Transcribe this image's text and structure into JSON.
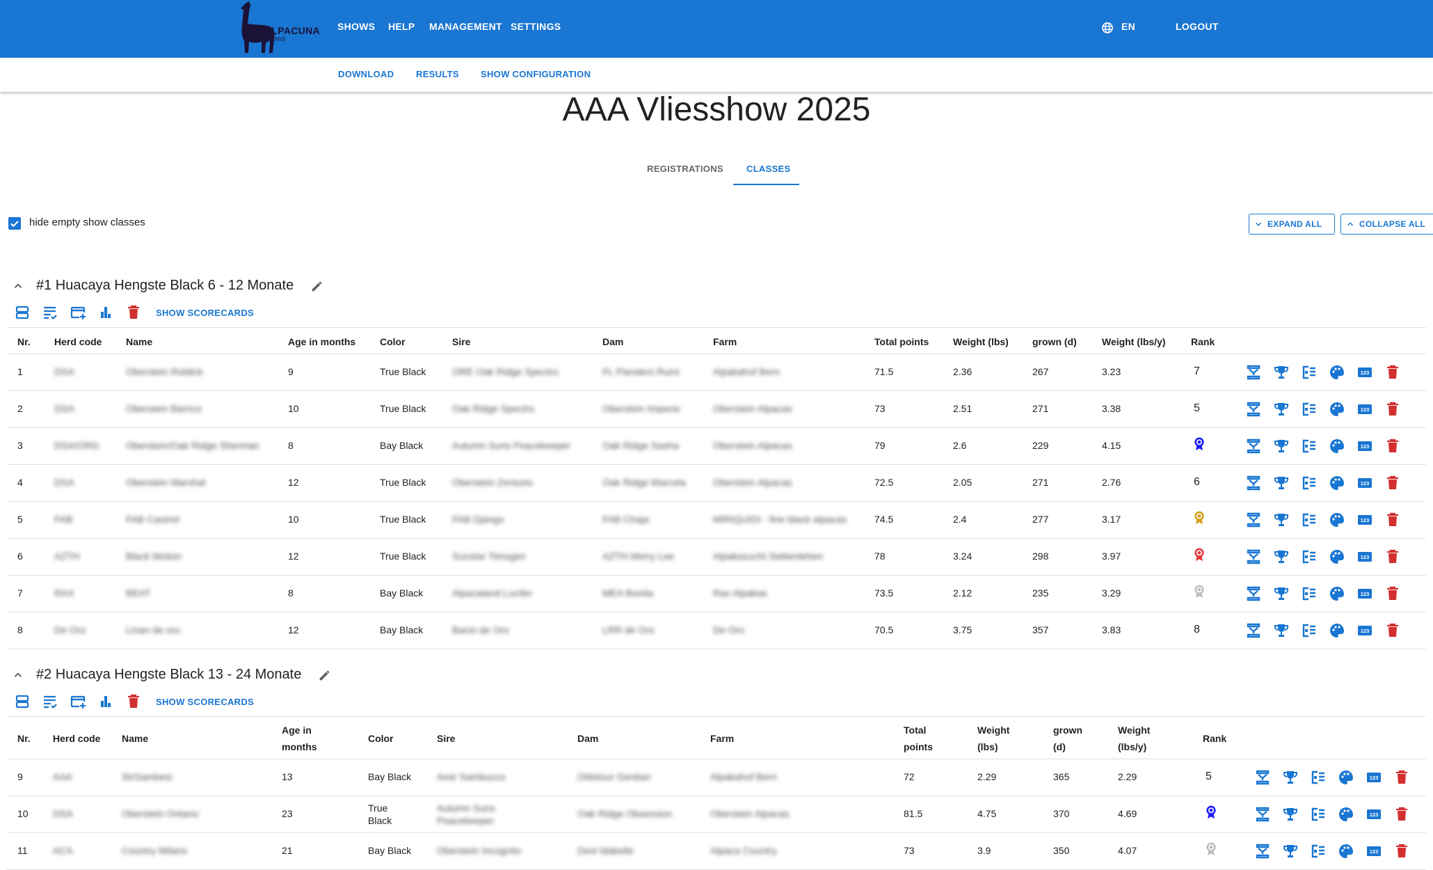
{
  "header": {
    "logo_text": "ALPACUNA",
    "logo_sub": "SHOWS",
    "nav": [
      "SHOWS",
      "HELP",
      "MANAGEMENT",
      "SETTINGS"
    ],
    "lang": "EN",
    "logout": "LOGOUT"
  },
  "subnav": [
    "DOWNLOAD",
    "RESULTS",
    "SHOW CONFIGURATION"
  ],
  "page_title": "AAA Vliesshow 2025",
  "tabs": [
    "REGISTRATIONS",
    "CLASSES"
  ],
  "active_tab": "CLASSES",
  "hide_empty_label": "hide empty show classes",
  "hide_empty_checked": true,
  "expand_all": "EXPAND ALL",
  "collapse_all": "COLLAPSE ALL",
  "show_scorecards": "SHOW SCORECARDS",
  "columns": {
    "nr": "Nr.",
    "herd": "Herd code",
    "name": "Name",
    "age": "Age in months",
    "color": "Color",
    "sire": "Sire",
    "dam": "Dam",
    "farm": "Farm",
    "total": "Total points",
    "weight": "Weight (lbs)",
    "grown": "grown (d)",
    "wpy": "Weight (lbs/y)",
    "rank": "Rank"
  },
  "columns_wrapped": {
    "age": [
      "Age in",
      "months"
    ],
    "total": [
      "Total",
      "points"
    ],
    "weight": [
      "Weight",
      "(lbs)"
    ],
    "grown": [
      "grown",
      "(d)"
    ],
    "wpy": [
      "Weight",
      "(lbs/y)"
    ]
  },
  "colors": {
    "primary": "#1976d2",
    "delete": "#d32f2f",
    "rosette_blue": "#1a1aff",
    "rosette_gold": "#d4a017",
    "rosette_red": "#e53935",
    "rosette_gray": "#bdbdbd"
  },
  "classes": [
    {
      "title": "#1 Huacaya Hengste Black 6 - 12 Monate",
      "rows": [
        {
          "nr": "1",
          "herd": "DSA",
          "name": "Oberstein Roldick",
          "age": "9",
          "color": "True Black",
          "sire": "ORE Oak Ridge Spectro",
          "dam": "FL Flanders Rumi",
          "farm": "Alpakahof Bern",
          "total": "71.5",
          "weight": "2.36",
          "grown": "267",
          "wpy": "3.23",
          "rank": "7"
        },
        {
          "nr": "2",
          "herd": "DSA",
          "name": "Oberstein Barrico",
          "age": "10",
          "color": "True Black",
          "sire": "Oak Ridge Spectro",
          "dam": "Oberstein Imperia",
          "farm": "Oberstein Alpacas",
          "total": "73",
          "weight": "2.51",
          "grown": "271",
          "wpy": "3.38",
          "rank": "5"
        },
        {
          "nr": "3",
          "herd": "DSA/ORG",
          "name": "Oberstein/Oak Ridge Sherman",
          "age": "8",
          "color": "Bay Black",
          "sire": "Autumn Suns Peacekeeper",
          "dam": "Oak Ridge Sasha",
          "farm": "Oberstein Alpacas",
          "total": "79",
          "weight": "2.6",
          "grown": "229",
          "wpy": "4.15",
          "rank": "",
          "rosette": "blue"
        },
        {
          "nr": "4",
          "herd": "DSA",
          "name": "Oberstein Marshal",
          "age": "12",
          "color": "True Black",
          "sire": "Oberstein Zenturio",
          "dam": "Oak Ridge Marcela",
          "farm": "Oberstein Alpacas",
          "total": "72.5",
          "weight": "2.05",
          "grown": "271",
          "wpy": "2.76",
          "rank": "6"
        },
        {
          "nr": "5",
          "herd": "FAB",
          "name": "FAB Casimir",
          "age": "10",
          "color": "True Black",
          "sire": "FAB Django",
          "dam": "FAB Chaja",
          "farm": "MIRIQUIDI - fine black alpacas",
          "total": "74.5",
          "weight": "2.4",
          "grown": "277",
          "wpy": "3.17",
          "rank": "",
          "rosette": "gold"
        },
        {
          "nr": "6",
          "herd": "AZTH",
          "name": "Black Motion",
          "age": "12",
          "color": "True Black",
          "sire": "Sunstar Timogen",
          "dam": "AZTH Merry Lee",
          "farm": "Alpakazucht Siebenlehen",
          "total": "78",
          "weight": "3.24",
          "grown": "298",
          "wpy": "3.97",
          "rank": "",
          "rosette": "red"
        },
        {
          "nr": "7",
          "herd": "RAX",
          "name": "BEAT",
          "age": "8",
          "color": "Bay Black",
          "sire": "Alpacaland Lucifer",
          "dam": "MEA Bonita",
          "farm": "Rax Alpakas",
          "total": "73.5",
          "weight": "2.12",
          "grown": "235",
          "wpy": "3.29",
          "rank": "",
          "rosette": "gray"
        },
        {
          "nr": "8",
          "herd": "De Oro",
          "name": "Linan de oro",
          "age": "12",
          "color": "Bay Black",
          "sire": "Bacio de Oro",
          "dam": "LRR de Oro",
          "farm": "De Oro",
          "total": "70.5",
          "weight": "3.75",
          "grown": "357",
          "wpy": "3.83",
          "rank": "8"
        }
      ]
    },
    {
      "title": "#2 Huacaya Hengste Black 13 - 24 Monate",
      "rows": [
        {
          "nr": "9",
          "herd": "AAA",
          "name": "StrSambesi",
          "age": "13",
          "color": "Bay Black",
          "sire": "Amir Sambucco",
          "dam": "Oldstour Gentian",
          "farm": "Alpakahof Bern",
          "total": "72",
          "weight": "2.29",
          "grown": "365",
          "wpy": "2.29",
          "rank": "5"
        },
        {
          "nr": "10",
          "herd": "DSA",
          "name": "Oberstein Ontario",
          "age": "23",
          "color": "True Black",
          "sire": "Autumn Suns Peacekeeper",
          "dam": "Oak Ridge Obsession",
          "farm": "Oberstein Alpacas",
          "total": "81.5",
          "weight": "4.75",
          "grown": "370",
          "wpy": "4.69",
          "rank": "",
          "rosette": "blue"
        },
        {
          "nr": "11",
          "herd": "ACA",
          "name": "Country Milano",
          "age": "21",
          "color": "Bay Black",
          "sire": "Oberstein Incognito",
          "dam": "Dexl Idabelle",
          "farm": "Alpaca Country",
          "total": "73",
          "weight": "3.9",
          "grown": "350",
          "wpy": "4.07",
          "rank": "",
          "rosette": "gray"
        }
      ]
    }
  ],
  "row_actions": [
    "ranking-icon",
    "trophy-icon",
    "scorecard-icon",
    "palette-icon",
    "numbers-icon",
    "delete-icon"
  ]
}
